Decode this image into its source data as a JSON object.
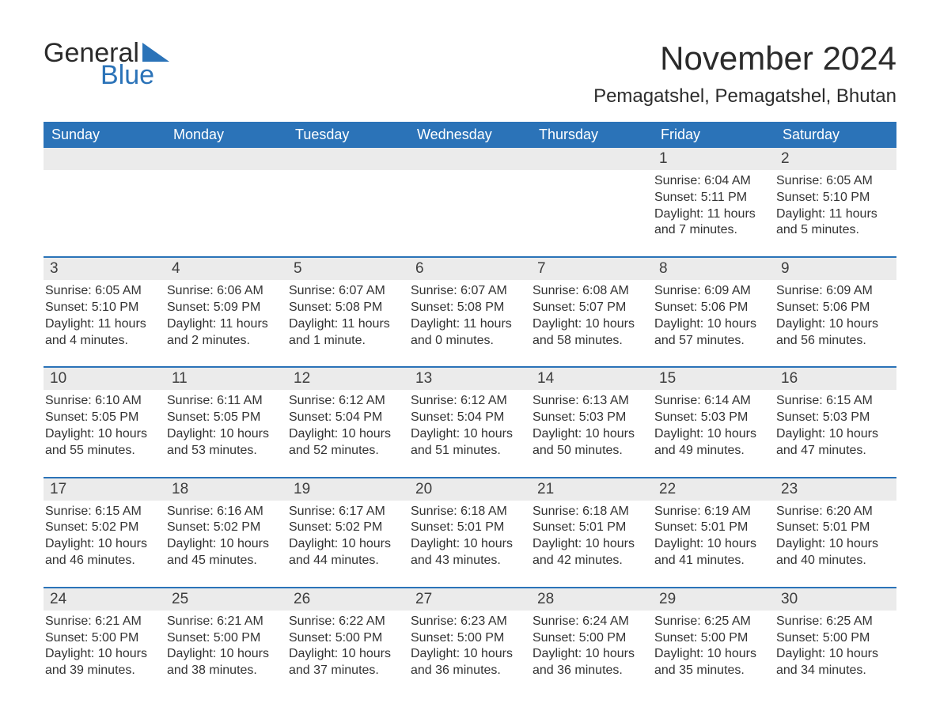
{
  "logo": {
    "top": "General",
    "bottom": "Blue",
    "tri_color": "#2b73b8"
  },
  "header": {
    "title": "November 2024",
    "location": "Pemagatshel, Pemagatshel, Bhutan"
  },
  "colors": {
    "header_bg": "#2b73b8",
    "header_text": "#ffffff",
    "daynum_bg": "#ebebeb",
    "week_rule": "#2b73b8",
    "body_text": "#333333",
    "page_bg": "#ffffff"
  },
  "weekdays": [
    "Sunday",
    "Monday",
    "Tuesday",
    "Wednesday",
    "Thursday",
    "Friday",
    "Saturday"
  ],
  "weeks": [
    [
      null,
      null,
      null,
      null,
      null,
      {
        "n": "1",
        "sunrise": "Sunrise: 6:04 AM",
        "sunset": "Sunset: 5:11 PM",
        "daylight": "Daylight: 11 hours and 7 minutes."
      },
      {
        "n": "2",
        "sunrise": "Sunrise: 6:05 AM",
        "sunset": "Sunset: 5:10 PM",
        "daylight": "Daylight: 11 hours and 5 minutes."
      }
    ],
    [
      {
        "n": "3",
        "sunrise": "Sunrise: 6:05 AM",
        "sunset": "Sunset: 5:10 PM",
        "daylight": "Daylight: 11 hours and 4 minutes."
      },
      {
        "n": "4",
        "sunrise": "Sunrise: 6:06 AM",
        "sunset": "Sunset: 5:09 PM",
        "daylight": "Daylight: 11 hours and 2 minutes."
      },
      {
        "n": "5",
        "sunrise": "Sunrise: 6:07 AM",
        "sunset": "Sunset: 5:08 PM",
        "daylight": "Daylight: 11 hours and 1 minute."
      },
      {
        "n": "6",
        "sunrise": "Sunrise: 6:07 AM",
        "sunset": "Sunset: 5:08 PM",
        "daylight": "Daylight: 11 hours and 0 minutes."
      },
      {
        "n": "7",
        "sunrise": "Sunrise: 6:08 AM",
        "sunset": "Sunset: 5:07 PM",
        "daylight": "Daylight: 10 hours and 58 minutes."
      },
      {
        "n": "8",
        "sunrise": "Sunrise: 6:09 AM",
        "sunset": "Sunset: 5:06 PM",
        "daylight": "Daylight: 10 hours and 57 minutes."
      },
      {
        "n": "9",
        "sunrise": "Sunrise: 6:09 AM",
        "sunset": "Sunset: 5:06 PM",
        "daylight": "Daylight: 10 hours and 56 minutes."
      }
    ],
    [
      {
        "n": "10",
        "sunrise": "Sunrise: 6:10 AM",
        "sunset": "Sunset: 5:05 PM",
        "daylight": "Daylight: 10 hours and 55 minutes."
      },
      {
        "n": "11",
        "sunrise": "Sunrise: 6:11 AM",
        "sunset": "Sunset: 5:05 PM",
        "daylight": "Daylight: 10 hours and 53 minutes."
      },
      {
        "n": "12",
        "sunrise": "Sunrise: 6:12 AM",
        "sunset": "Sunset: 5:04 PM",
        "daylight": "Daylight: 10 hours and 52 minutes."
      },
      {
        "n": "13",
        "sunrise": "Sunrise: 6:12 AM",
        "sunset": "Sunset: 5:04 PM",
        "daylight": "Daylight: 10 hours and 51 minutes."
      },
      {
        "n": "14",
        "sunrise": "Sunrise: 6:13 AM",
        "sunset": "Sunset: 5:03 PM",
        "daylight": "Daylight: 10 hours and 50 minutes."
      },
      {
        "n": "15",
        "sunrise": "Sunrise: 6:14 AM",
        "sunset": "Sunset: 5:03 PM",
        "daylight": "Daylight: 10 hours and 49 minutes."
      },
      {
        "n": "16",
        "sunrise": "Sunrise: 6:15 AM",
        "sunset": "Sunset: 5:03 PM",
        "daylight": "Daylight: 10 hours and 47 minutes."
      }
    ],
    [
      {
        "n": "17",
        "sunrise": "Sunrise: 6:15 AM",
        "sunset": "Sunset: 5:02 PM",
        "daylight": "Daylight: 10 hours and 46 minutes."
      },
      {
        "n": "18",
        "sunrise": "Sunrise: 6:16 AM",
        "sunset": "Sunset: 5:02 PM",
        "daylight": "Daylight: 10 hours and 45 minutes."
      },
      {
        "n": "19",
        "sunrise": "Sunrise: 6:17 AM",
        "sunset": "Sunset: 5:02 PM",
        "daylight": "Daylight: 10 hours and 44 minutes."
      },
      {
        "n": "20",
        "sunrise": "Sunrise: 6:18 AM",
        "sunset": "Sunset: 5:01 PM",
        "daylight": "Daylight: 10 hours and 43 minutes."
      },
      {
        "n": "21",
        "sunrise": "Sunrise: 6:18 AM",
        "sunset": "Sunset: 5:01 PM",
        "daylight": "Daylight: 10 hours and 42 minutes."
      },
      {
        "n": "22",
        "sunrise": "Sunrise: 6:19 AM",
        "sunset": "Sunset: 5:01 PM",
        "daylight": "Daylight: 10 hours and 41 minutes."
      },
      {
        "n": "23",
        "sunrise": "Sunrise: 6:20 AM",
        "sunset": "Sunset: 5:01 PM",
        "daylight": "Daylight: 10 hours and 40 minutes."
      }
    ],
    [
      {
        "n": "24",
        "sunrise": "Sunrise: 6:21 AM",
        "sunset": "Sunset: 5:00 PM",
        "daylight": "Daylight: 10 hours and 39 minutes."
      },
      {
        "n": "25",
        "sunrise": "Sunrise: 6:21 AM",
        "sunset": "Sunset: 5:00 PM",
        "daylight": "Daylight: 10 hours and 38 minutes."
      },
      {
        "n": "26",
        "sunrise": "Sunrise: 6:22 AM",
        "sunset": "Sunset: 5:00 PM",
        "daylight": "Daylight: 10 hours and 37 minutes."
      },
      {
        "n": "27",
        "sunrise": "Sunrise: 6:23 AM",
        "sunset": "Sunset: 5:00 PM",
        "daylight": "Daylight: 10 hours and 36 minutes."
      },
      {
        "n": "28",
        "sunrise": "Sunrise: 6:24 AM",
        "sunset": "Sunset: 5:00 PM",
        "daylight": "Daylight: 10 hours and 36 minutes."
      },
      {
        "n": "29",
        "sunrise": "Sunrise: 6:25 AM",
        "sunset": "Sunset: 5:00 PM",
        "daylight": "Daylight: 10 hours and 35 minutes."
      },
      {
        "n": "30",
        "sunrise": "Sunrise: 6:25 AM",
        "sunset": "Sunset: 5:00 PM",
        "daylight": "Daylight: 10 hours and 34 minutes."
      }
    ]
  ]
}
